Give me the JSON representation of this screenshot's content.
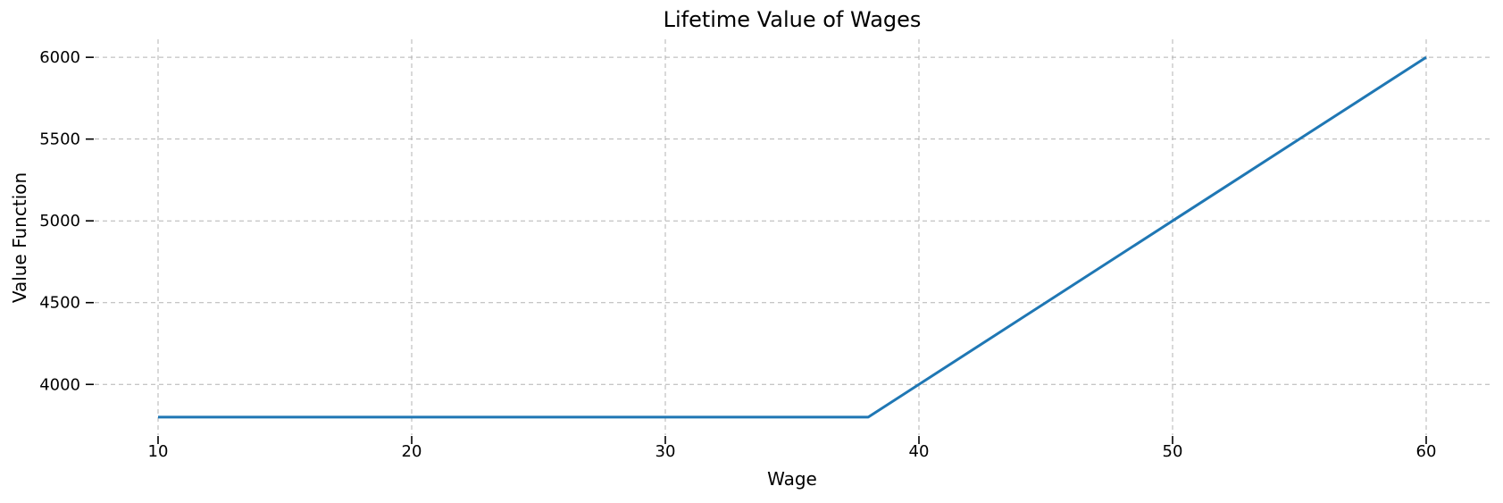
{
  "figure": {
    "background_color": "#ffffff",
    "text_color": "#000000"
  },
  "chart_data": {
    "type": "line",
    "title": "Lifetime Value of Wages",
    "xlabel": "Wage",
    "ylabel": "Value Function",
    "x": [
      10,
      15,
      20,
      25,
      30,
      35,
      38,
      40,
      45,
      50,
      55,
      60
    ],
    "series": [
      {
        "name": "Value Function",
        "color": "#1f77b4",
        "line_width": 3,
        "values": [
          3800,
          3800,
          3800,
          3800,
          3800,
          3800,
          3800,
          4000,
          4500,
          5000,
          5500,
          6000
        ]
      }
    ],
    "xticks": [
      10,
      20,
      30,
      40,
      50,
      60
    ],
    "yticks": [
      4000,
      4500,
      5000,
      5500,
      6000
    ],
    "xlim": [
      7.5,
      62.5
    ],
    "ylim": [
      3690,
      6110
    ],
    "grid": {
      "visible": true,
      "style": "dashed",
      "color": "#b3b3b3"
    },
    "tick_color": "#000000",
    "legend": {
      "visible": false
    }
  }
}
